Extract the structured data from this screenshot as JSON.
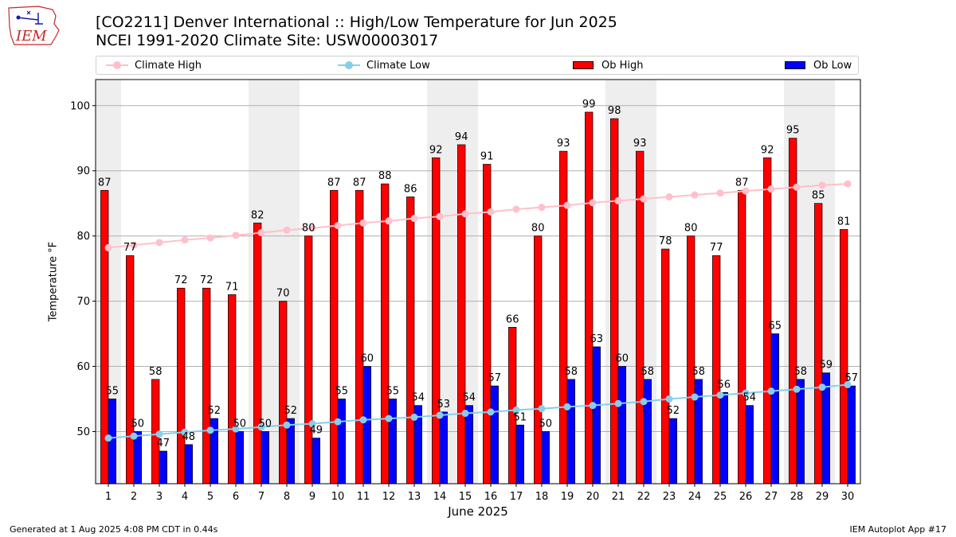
{
  "header": {
    "logo_text": "IEM",
    "title_line1": "[CO2211] Denver International :: High/Low Temperature for Jun 2025",
    "title_line2": "NCEI 1991-2020 Climate Site: USW00003017"
  },
  "footer": {
    "left": "Generated at 1 Aug 2025 4:08 PM CDT in 0.44s",
    "right": "IEM Autoplot App #17"
  },
  "colors": {
    "ob_high": "#ff0000",
    "ob_low": "#0000ff",
    "climate_high": "#ffc0cb",
    "climate_low": "#87ceeb",
    "weekend_shade": "#eeeeee",
    "grid": "#b0b0b0"
  },
  "chart_data": {
    "type": "bar",
    "xlabel": "June 2025",
    "ylabel": "Temperature °F",
    "ylim": [
      42,
      104
    ],
    "yticks": [
      50,
      60,
      70,
      80,
      90,
      100
    ],
    "grid": true,
    "legend_placement": "top",
    "categories": [
      "1",
      "2",
      "3",
      "4",
      "5",
      "6",
      "7",
      "8",
      "9",
      "10",
      "11",
      "12",
      "13",
      "14",
      "15",
      "16",
      "17",
      "18",
      "19",
      "20",
      "21",
      "22",
      "23",
      "24",
      "25",
      "26",
      "27",
      "28",
      "29",
      "30"
    ],
    "shaded_days": [
      1,
      7,
      8,
      14,
      15,
      21,
      22,
      28,
      29
    ],
    "series": [
      {
        "name": "Climate High",
        "kind": "line",
        "values": [
          78.2,
          78.6,
          79.0,
          79.4,
          79.7,
          80.1,
          80.5,
          80.9,
          81.2,
          81.6,
          82.0,
          82.3,
          82.7,
          83.0,
          83.4,
          83.7,
          84.1,
          84.4,
          84.7,
          85.1,
          85.4,
          85.7,
          86.0,
          86.3,
          86.6,
          86.9,
          87.2,
          87.5,
          87.8,
          88.0
        ]
      },
      {
        "name": "Climate Low",
        "kind": "line",
        "values": [
          49.0,
          49.3,
          49.6,
          49.9,
          50.2,
          50.4,
          50.7,
          51.0,
          51.2,
          51.5,
          51.8,
          52.0,
          52.2,
          52.5,
          52.8,
          53.0,
          53.3,
          53.5,
          53.8,
          54.0,
          54.3,
          54.6,
          55.0,
          55.3,
          55.6,
          55.9,
          56.2,
          56.5,
          56.8,
          57.2
        ]
      },
      {
        "name": "Ob High",
        "kind": "bar",
        "values": [
          87,
          77,
          58,
          72,
          72,
          71,
          82,
          70,
          80,
          87,
          87,
          88,
          86,
          92,
          94,
          91,
          66,
          80,
          93,
          99,
          98,
          93,
          78,
          80,
          77,
          87,
          92,
          95,
          85,
          81
        ]
      },
      {
        "name": "Ob Low",
        "kind": "bar",
        "values": [
          55,
          50,
          47,
          48,
          52,
          50,
          50,
          52,
          49,
          55,
          60,
          55,
          54,
          53,
          54,
          57,
          51,
          50,
          58,
          63,
          60,
          58,
          52,
          58,
          56,
          54,
          65,
          58,
          59,
          57
        ]
      }
    ]
  }
}
